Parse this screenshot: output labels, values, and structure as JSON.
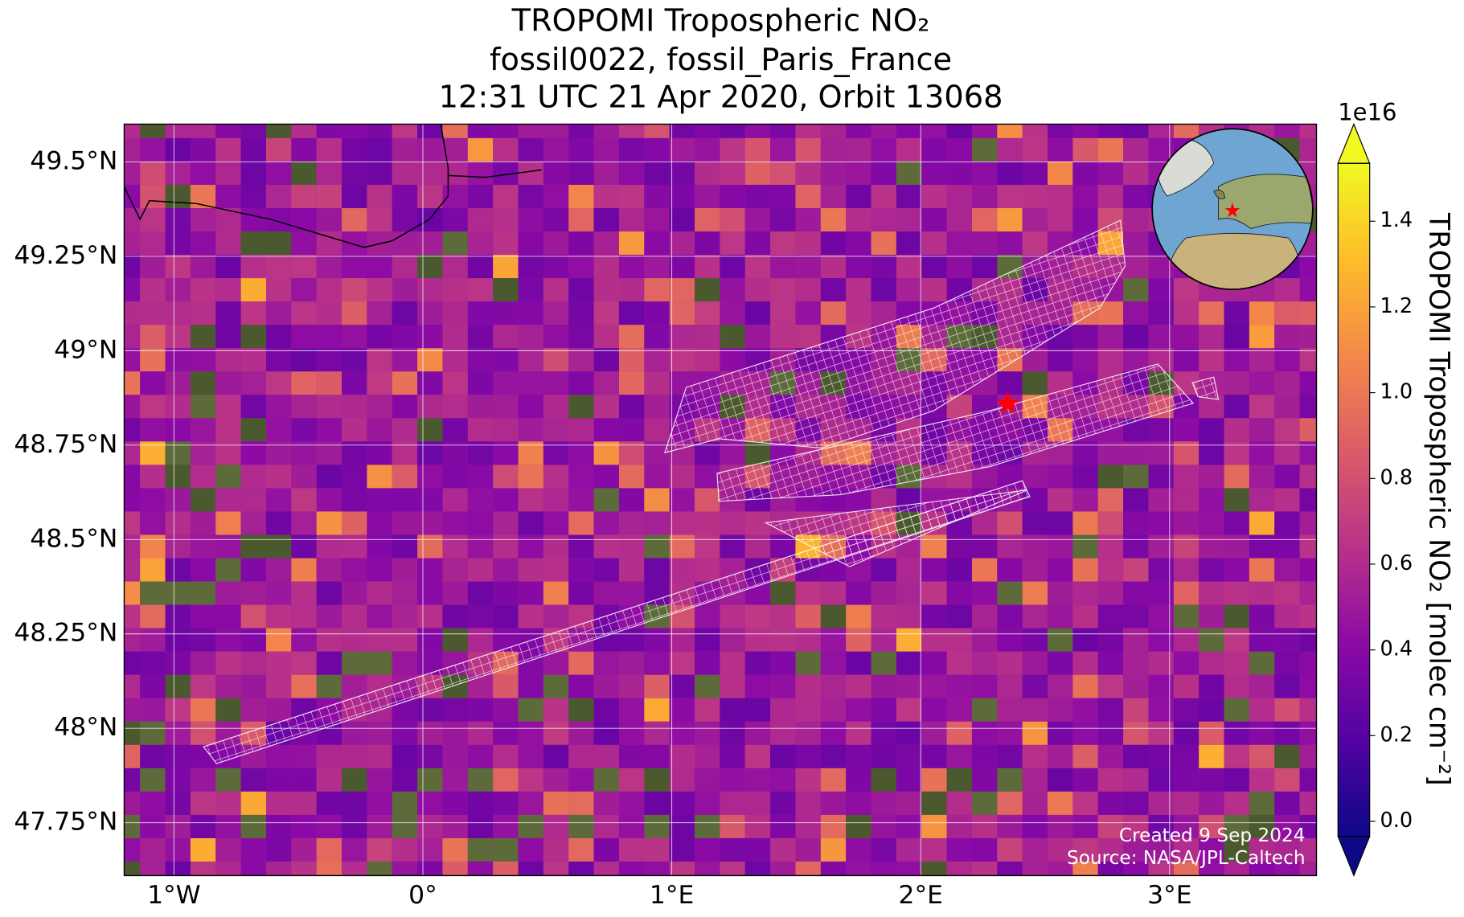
{
  "chart_data": {
    "type": "map",
    "title": "TROPOMI Tropospheric NO₂",
    "subtitle": [
      "fossil0022, fossil_Paris_France",
      "12:31 UTC 21 Apr 2020, Orbit 13068"
    ],
    "xlim": [
      -1.2,
      3.59
    ],
    "ylim": [
      47.61,
      49.6
    ],
    "xticks": [
      {
        "value": -1,
        "label": "1°W"
      },
      {
        "value": 0,
        "label": "0°"
      },
      {
        "value": 1,
        "label": "1°E"
      },
      {
        "value": 2,
        "label": "2°E"
      },
      {
        "value": 3,
        "label": "3°E"
      }
    ],
    "yticks": [
      {
        "value": 47.75,
        "label": "47.75°N"
      },
      {
        "value": 48,
        "label": "48°N"
      },
      {
        "value": 48.25,
        "label": "48.25°N"
      },
      {
        "value": 48.5,
        "label": "48.5°N"
      },
      {
        "value": 48.75,
        "label": "48.75°N"
      },
      {
        "value": 49,
        "label": "49°N"
      },
      {
        "value": 49.25,
        "label": "49.25°N"
      },
      {
        "value": 49.5,
        "label": "49.5°N"
      }
    ],
    "grid": true,
    "marker": {
      "lon": 2.35,
      "lat": 48.86,
      "color": "#ff0000"
    },
    "annotations": [
      "Created 9 Sep 2024",
      "Source: NASA/JPL-Caltech"
    ],
    "colorbar": {
      "label": "TROPOMI Tropospheric NO₂ [molec cm⁻²]",
      "exponent_label": "1e16",
      "colormap": "plasma",
      "extend": "both",
      "lim": [
        -0.035,
        1.535
      ],
      "ticks": [
        {
          "value": 0,
          "label": "0.0"
        },
        0.2,
        0.4,
        0.6,
        0.8,
        {
          "value": 1,
          "label": "1.0"
        },
        1.2,
        1.4
      ]
    }
  }
}
